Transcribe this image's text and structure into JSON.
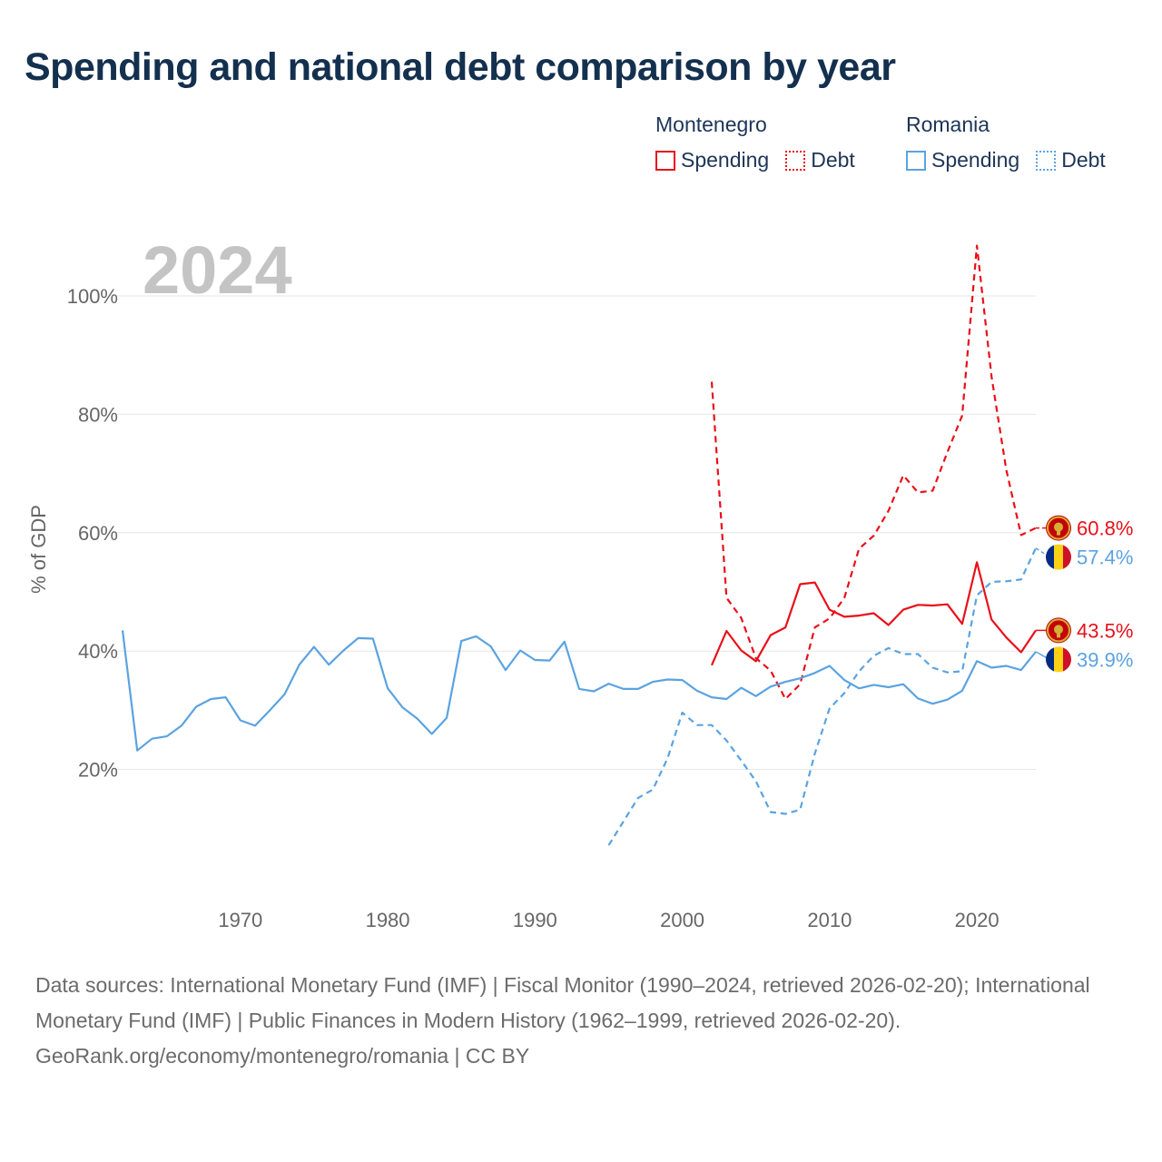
{
  "title": "Spending and national debt comparison by year",
  "legend": {
    "groups": [
      {
        "name": "Montenegro",
        "color": "#e8101a",
        "spending_label": "Spending",
        "debt_label": "Debt"
      },
      {
        "name": "Romania",
        "color": "#5ba3e0",
        "spending_label": "Spending",
        "debt_label": "Debt"
      }
    ]
  },
  "chart_data": {
    "type": "line",
    "title": "Spending and national debt comparison by year",
    "year_watermark": "2024",
    "xlabel": "",
    "ylabel": "% of GDP",
    "xlim": [
      1962,
      2024
    ],
    "ylim": [
      0,
      110
    ],
    "x_ticks": [
      1970,
      1980,
      1990,
      2000,
      2010,
      2020
    ],
    "y_ticks": [
      20,
      40,
      60,
      80,
      100
    ],
    "y_tick_labels": [
      "20%",
      "40%",
      "60%",
      "80%",
      "100%"
    ],
    "grid": true,
    "series": [
      {
        "name": "Montenegro Spending",
        "country": "Montenegro",
        "metric": "Spending",
        "color": "#e8101a",
        "dash": false,
        "end_label": "43.5%",
        "points": [
          [
            2002,
            37.6
          ],
          [
            2003,
            43.4
          ],
          [
            2004,
            40.1
          ],
          [
            2005,
            38.3
          ],
          [
            2006,
            42.7
          ],
          [
            2007,
            44.0
          ],
          [
            2008,
            51.3
          ],
          [
            2009,
            51.6
          ],
          [
            2010,
            47.0
          ],
          [
            2011,
            45.8
          ],
          [
            2012,
            46.0
          ],
          [
            2013,
            46.4
          ],
          [
            2014,
            44.4
          ],
          [
            2015,
            47.0
          ],
          [
            2016,
            47.8
          ],
          [
            2017,
            47.7
          ],
          [
            2018,
            47.9
          ],
          [
            2019,
            44.6
          ],
          [
            2020,
            55.0
          ],
          [
            2021,
            45.3
          ],
          [
            2022,
            42.3
          ],
          [
            2023,
            39.8
          ],
          [
            2024,
            43.5
          ]
        ]
      },
      {
        "name": "Montenegro Debt",
        "country": "Montenegro",
        "metric": "Debt",
        "color": "#e8101a",
        "dash": true,
        "end_label": "60.8%",
        "points": [
          [
            2002,
            85.5
          ],
          [
            2003,
            49.0
          ],
          [
            2004,
            45.6
          ],
          [
            2005,
            38.8
          ],
          [
            2006,
            36.7
          ],
          [
            2007,
            31.9
          ],
          [
            2008,
            34.4
          ],
          [
            2009,
            44.0
          ],
          [
            2010,
            45.5
          ],
          [
            2011,
            49.0
          ],
          [
            2012,
            57.3
          ],
          [
            2013,
            59.5
          ],
          [
            2014,
            63.7
          ],
          [
            2015,
            69.7
          ],
          [
            2016,
            66.8
          ],
          [
            2017,
            67.1
          ],
          [
            2018,
            73.6
          ],
          [
            2019,
            79.8
          ],
          [
            2020,
            108.5
          ],
          [
            2021,
            86.3
          ],
          [
            2022,
            70.6
          ],
          [
            2023,
            59.6
          ],
          [
            2024,
            60.8
          ]
        ]
      },
      {
        "name": "Romania Spending",
        "country": "Romania",
        "metric": "Spending",
        "color": "#5ba3e0",
        "dash": false,
        "end_label": "39.9%",
        "points": [
          [
            1962,
            43.5
          ],
          [
            1963,
            23.2
          ],
          [
            1964,
            25.2
          ],
          [
            1965,
            25.6
          ],
          [
            1966,
            27.4
          ],
          [
            1967,
            30.6
          ],
          [
            1968,
            31.9
          ],
          [
            1969,
            32.2
          ],
          [
            1970,
            28.3
          ],
          [
            1971,
            27.4
          ],
          [
            1972,
            30.0
          ],
          [
            1973,
            32.7
          ],
          [
            1974,
            37.7
          ],
          [
            1975,
            40.7
          ],
          [
            1976,
            37.7
          ],
          [
            1977,
            40.1
          ],
          [
            1978,
            42.2
          ],
          [
            1979,
            42.1
          ],
          [
            1980,
            33.7
          ],
          [
            1981,
            30.5
          ],
          [
            1982,
            28.6
          ],
          [
            1983,
            26.0
          ],
          [
            1984,
            28.7
          ],
          [
            1985,
            41.7
          ],
          [
            1986,
            42.5
          ],
          [
            1987,
            40.8
          ],
          [
            1988,
            36.8
          ],
          [
            1989,
            40.1
          ],
          [
            1990,
            38.5
          ],
          [
            1991,
            38.4
          ],
          [
            1992,
            41.6
          ],
          [
            1993,
            33.6
          ],
          [
            1994,
            33.2
          ],
          [
            1995,
            34.5
          ],
          [
            1996,
            33.6
          ],
          [
            1997,
            33.6
          ],
          [
            1998,
            34.8
          ],
          [
            1999,
            35.2
          ],
          [
            2000,
            35.1
          ],
          [
            2001,
            33.3
          ],
          [
            2002,
            32.2
          ],
          [
            2003,
            31.9
          ],
          [
            2004,
            33.8
          ],
          [
            2005,
            32.4
          ],
          [
            2006,
            34.0
          ],
          [
            2007,
            34.8
          ],
          [
            2008,
            35.4
          ],
          [
            2009,
            36.3
          ],
          [
            2010,
            37.5
          ],
          [
            2011,
            35.1
          ],
          [
            2012,
            33.7
          ],
          [
            2013,
            34.3
          ],
          [
            2014,
            33.9
          ],
          [
            2015,
            34.4
          ],
          [
            2016,
            32.0
          ],
          [
            2017,
            31.1
          ],
          [
            2018,
            31.8
          ],
          [
            2019,
            33.3
          ],
          [
            2020,
            38.3
          ],
          [
            2021,
            37.2
          ],
          [
            2022,
            37.5
          ],
          [
            2023,
            36.8
          ],
          [
            2024,
            39.9
          ]
        ]
      },
      {
        "name": "Romania Debt",
        "country": "Romania",
        "metric": "Debt",
        "color": "#5ba3e0",
        "dash": true,
        "end_label": "57.4%",
        "points": [
          [
            1995,
            7.2
          ],
          [
            1996,
            11.2
          ],
          [
            1997,
            15.2
          ],
          [
            1998,
            16.6
          ],
          [
            1999,
            21.9
          ],
          [
            2000,
            29.6
          ],
          [
            2001,
            27.5
          ],
          [
            2002,
            27.5
          ],
          [
            2003,
            24.9
          ],
          [
            2004,
            21.5
          ],
          [
            2005,
            18.0
          ],
          [
            2006,
            12.8
          ],
          [
            2007,
            12.5
          ],
          [
            2008,
            13.2
          ],
          [
            2009,
            22.7
          ],
          [
            2010,
            30.3
          ],
          [
            2011,
            32.9
          ],
          [
            2012,
            36.6
          ],
          [
            2013,
            39.2
          ],
          [
            2014,
            40.5
          ],
          [
            2015,
            39.5
          ],
          [
            2016,
            39.5
          ],
          [
            2017,
            37.2
          ],
          [
            2018,
            36.4
          ],
          [
            2019,
            36.6
          ],
          [
            2020,
            49.4
          ],
          [
            2021,
            51.7
          ],
          [
            2022,
            51.8
          ],
          [
            2023,
            52.1
          ],
          [
            2024,
            57.4
          ]
        ]
      }
    ]
  },
  "footer": {
    "sources": "Data sources: International Monetary Fund (IMF) | Fiscal Monitor (1990–2024, retrieved 2026-02-20); International Monetary Fund (IMF) | Public Finances in Modern History (1962–1999, retrieved 2026-02-20).",
    "credit": "GeoRank.org/economy/montenegro/romania | CC BY"
  }
}
